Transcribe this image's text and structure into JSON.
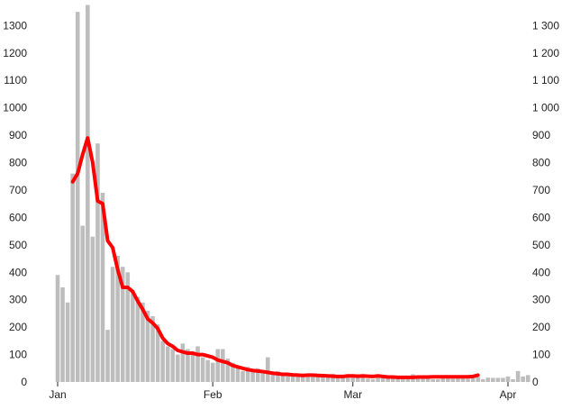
{
  "chart_data": {
    "type": "bar",
    "title": "",
    "xlabel": "",
    "ylabel": "",
    "ylim": [
      0,
      1380
    ],
    "grid": false,
    "legend": "none",
    "x_ticks": [
      {
        "label": "Jan",
        "day": 1
      },
      {
        "label": "Feb",
        "day": 32
      },
      {
        "label": "Mar",
        "day": 60
      },
      {
        "label": "Apr",
        "day": 91
      }
    ],
    "y_ticks_left": [
      "0",
      "100",
      "200",
      "300",
      "400",
      "500",
      "600",
      "700",
      "800",
      "900",
      "1000",
      "1100",
      "1200",
      "1300"
    ],
    "y_ticks_right": [
      "0",
      "100",
      "200",
      "300",
      "400",
      "500",
      "600",
      "700",
      "800",
      "900",
      "1 000",
      "1 100",
      "1 200",
      "1 300"
    ],
    "x_start_day": 1,
    "series": [
      {
        "kind": "bar",
        "color": "#bdbdbd",
        "values": [
          390,
          345,
          290,
          760,
          1350,
          570,
          1375,
          530,
          870,
          690,
          190,
          420,
          460,
          420,
          400,
          330,
          310,
          290,
          260,
          240,
          210,
          150,
          130,
          120,
          100,
          140,
          120,
          110,
          130,
          90,
          80,
          70,
          120,
          120,
          85,
          70,
          50,
          40,
          55,
          45,
          50,
          35,
          90,
          35,
          40,
          30,
          30,
          28,
          26,
          25,
          22,
          23,
          22,
          20,
          18,
          30,
          25,
          22,
          20,
          18,
          15,
          20,
          12,
          10,
          15,
          18,
          12,
          22,
          15,
          20,
          12,
          28,
          20,
          15,
          12,
          10,
          10,
          15,
          14,
          12,
          16,
          18,
          12,
          14,
          18,
          10,
          16,
          15,
          15,
          15,
          20,
          10,
          40,
          20,
          25
        ]
      },
      {
        "kind": "line",
        "color": "#ff0000",
        "start_day": 4,
        "values": [
          730,
          760,
          830,
          890,
          800,
          660,
          650,
          515,
          490,
          410,
          345,
          345,
          330,
          295,
          265,
          230,
          215,
          195,
          160,
          140,
          130,
          115,
          110,
          105,
          105,
          100,
          100,
          95,
          90,
          80,
          75,
          70,
          60,
          55,
          50,
          45,
          42,
          40,
          38,
          35,
          32,
          30,
          28,
          28,
          26,
          25,
          24,
          25,
          25,
          24,
          23,
          22,
          21,
          20,
          20,
          22,
          22,
          21,
          22,
          21,
          20,
          22,
          20,
          18,
          18,
          17,
          17,
          17,
          17,
          18,
          18,
          18,
          19,
          19,
          19,
          19,
          19,
          19,
          19,
          19,
          20,
          25
        ]
      }
    ]
  }
}
